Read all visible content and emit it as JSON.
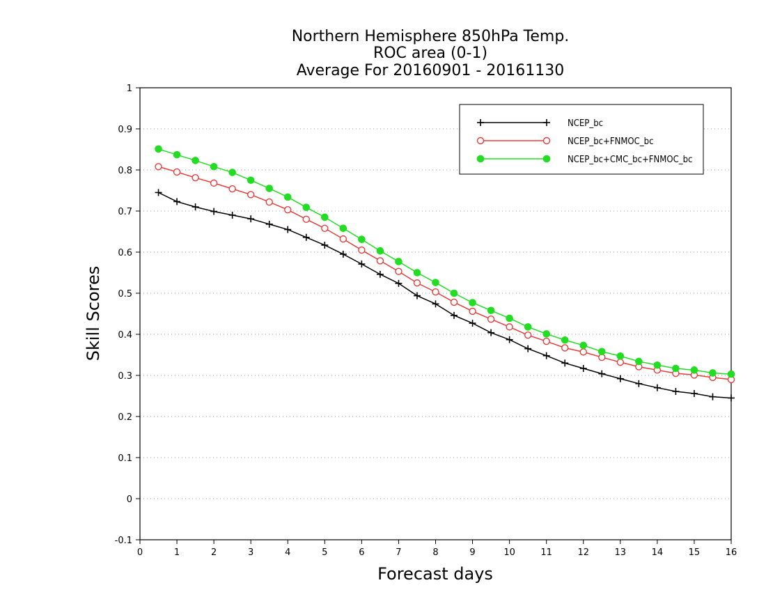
{
  "chart_data": {
    "type": "line",
    "title": [
      "Northern Hemisphere 850hPa Temp.",
      "ROC area (0-1)",
      "Average For 20160901 - 20161130"
    ],
    "xlabel": "Forecast days",
    "ylabel": "Skill Scores",
    "xlim": [
      0,
      16
    ],
    "ylim": [
      -0.1,
      1
    ],
    "xticks": [
      0,
      1,
      2,
      3,
      4,
      5,
      6,
      7,
      8,
      9,
      10,
      11,
      12,
      13,
      14,
      15,
      16
    ],
    "yticks": [
      -0.1,
      0,
      0.1,
      0.2,
      0.3,
      0.4,
      0.5,
      0.6,
      0.7,
      0.8,
      0.9,
      1
    ],
    "grid": "horizontal-dotted",
    "legend_position": "top-right",
    "x": [
      0.5,
      1,
      1.5,
      2,
      2.5,
      3,
      3.5,
      4,
      4.5,
      5,
      5.5,
      6,
      6.5,
      7,
      7.5,
      8,
      8.5,
      9,
      9.5,
      10,
      10.5,
      11,
      11.5,
      12,
      12.5,
      13,
      13.5,
      14,
      14.5,
      15,
      15.5,
      16
    ],
    "series": [
      {
        "name": "NCEP_bc",
        "color": "#000000",
        "marker": "plus",
        "values": [
          0.745,
          0.723,
          0.71,
          0.699,
          0.69,
          0.681,
          0.668,
          0.655,
          0.636,
          0.617,
          0.595,
          0.571,
          0.546,
          0.524,
          0.494,
          0.474,
          0.446,
          0.427,
          0.404,
          0.387,
          0.365,
          0.348,
          0.33,
          0.317,
          0.304,
          0.292,
          0.28,
          0.27,
          0.261,
          0.256,
          0.248,
          0.245
        ]
      },
      {
        "name": "NCEP_bc+FNMOC_bc",
        "color": "#e83c3c",
        "marker": "open-circle",
        "values": [
          0.808,
          0.795,
          0.781,
          0.768,
          0.754,
          0.74,
          0.722,
          0.703,
          0.68,
          0.658,
          0.632,
          0.605,
          0.579,
          0.553,
          0.525,
          0.503,
          0.478,
          0.456,
          0.437,
          0.418,
          0.398,
          0.383,
          0.367,
          0.357,
          0.344,
          0.332,
          0.321,
          0.313,
          0.305,
          0.301,
          0.295,
          0.29
        ]
      },
      {
        "name": "NCEP_bc+CMC_bc+FNMOC_bc",
        "color": "#22dd22",
        "marker": "filled-circle",
        "values": [
          0.851,
          0.837,
          0.823,
          0.808,
          0.794,
          0.775,
          0.755,
          0.734,
          0.709,
          0.685,
          0.658,
          0.631,
          0.603,
          0.577,
          0.55,
          0.526,
          0.5,
          0.477,
          0.458,
          0.439,
          0.418,
          0.401,
          0.386,
          0.373,
          0.358,
          0.347,
          0.334,
          0.325,
          0.317,
          0.313,
          0.306,
          0.303
        ]
      }
    ]
  }
}
